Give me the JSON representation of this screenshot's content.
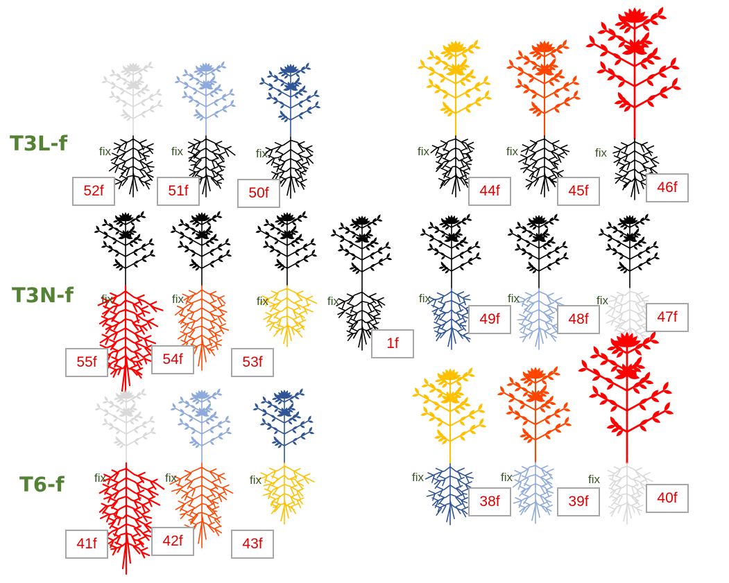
{
  "rows": [
    {
      "label": "T3L-f"
    },
    {
      "label": "T3N-f"
    },
    {
      "label": "T6-f"
    }
  ],
  "fix_text": "fix",
  "colors": {
    "black": "#000000",
    "light_grey": "#d9d9d9",
    "light_blue": "#8ea9db",
    "dark_blue": "#2f5597",
    "yellow": "#ffc000",
    "orange": "#ff4500",
    "red": "#ff0000",
    "label_green": "#548235",
    "fix_green": "#375623",
    "tag_red": "#e00000"
  },
  "plants": [
    {
      "id": "52f",
      "row": "T3L-f",
      "shoot_color": "light_grey",
      "shoot_size": "small",
      "root_color": "black",
      "root_size": "small"
    },
    {
      "id": "51f",
      "row": "T3L-f",
      "shoot_color": "light_blue",
      "shoot_size": "small",
      "root_color": "black",
      "root_size": "small"
    },
    {
      "id": "50f",
      "row": "T3L-f",
      "shoot_color": "dark_blue",
      "shoot_size": "small",
      "root_color": "black",
      "root_size": "small"
    },
    {
      "id": "44f",
      "row": "T3L-f",
      "shoot_color": "yellow",
      "shoot_size": "medium",
      "root_color": "black",
      "root_size": "small"
    },
    {
      "id": "45f",
      "row": "T3L-f",
      "shoot_color": "orange",
      "shoot_size": "medium",
      "root_color": "black",
      "root_size": "small"
    },
    {
      "id": "46f",
      "row": "T3L-f",
      "shoot_color": "red",
      "shoot_size": "large",
      "root_color": "black",
      "root_size": "small"
    },
    {
      "id": "55f",
      "row": "T3N-f",
      "shoot_color": "black",
      "shoot_size": "small",
      "root_color": "red",
      "root_size": "large"
    },
    {
      "id": "54f",
      "row": "T3N-f",
      "shoot_color": "black",
      "shoot_size": "small",
      "root_color": "orange",
      "root_size": "medium"
    },
    {
      "id": "53f",
      "row": "T3N-f",
      "shoot_color": "black",
      "shoot_size": "small",
      "root_color": "yellow",
      "root_size": "small"
    },
    {
      "id": "1f",
      "row": "T3N-f",
      "shoot_color": "black",
      "shoot_size": "small",
      "root_color": "black",
      "root_size": "small"
    },
    {
      "id": "49f",
      "row": "T3N-f",
      "shoot_color": "black",
      "shoot_size": "small",
      "root_color": "dark_blue",
      "root_size": "small"
    },
    {
      "id": "48f",
      "row": "T3N-f",
      "shoot_color": "black",
      "shoot_size": "small",
      "root_color": "light_blue",
      "root_size": "small"
    },
    {
      "id": "47f",
      "row": "T3N-f",
      "shoot_color": "black",
      "shoot_size": "small",
      "root_color": "light_grey",
      "root_size": "small"
    },
    {
      "id": "41f",
      "row": "T6-f",
      "shoot_color": "light_grey",
      "shoot_size": "small",
      "root_color": "red",
      "root_size": "large"
    },
    {
      "id": "42f",
      "row": "T6-f",
      "shoot_color": "light_blue",
      "shoot_size": "small",
      "root_color": "orange",
      "root_size": "medium"
    },
    {
      "id": "43f",
      "row": "T6-f",
      "shoot_color": "dark_blue",
      "shoot_size": "small",
      "root_color": "yellow",
      "root_size": "small"
    },
    {
      "id": "38f",
      "row": "T6-f",
      "shoot_color": "yellow",
      "shoot_size": "medium",
      "root_color": "dark_blue",
      "root_size": "small"
    },
    {
      "id": "39f",
      "row": "T6-f",
      "shoot_color": "orange",
      "shoot_size": "medium",
      "root_color": "light_blue",
      "root_size": "small"
    },
    {
      "id": "40f",
      "row": "T6-f",
      "shoot_color": "red",
      "shoot_size": "large",
      "root_color": "light_grey",
      "root_size": "small"
    }
  ]
}
